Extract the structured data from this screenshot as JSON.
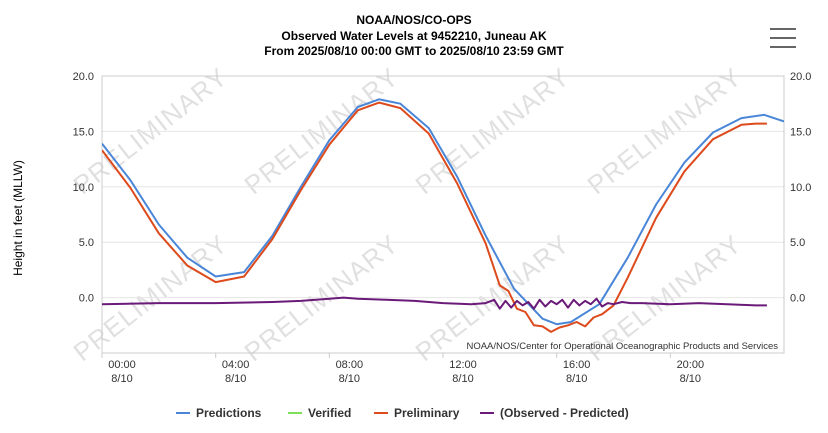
{
  "chart_data": {
    "type": "line",
    "title_lines": [
      "NOAA/NOS/CO-OPS",
      "Observed Water Levels at 9452210, Juneau AK",
      "From 2025/08/10 00:00 GMT to 2025/08/10 23:59 GMT"
    ],
    "ylabel": "Height in feet (MLLW)",
    "ylim": [
      -5,
      20
    ],
    "yticks": [
      "20.0",
      "15.0",
      "10.0",
      "5.0",
      "0.0"
    ],
    "ytick_values": [
      20,
      15,
      10,
      5,
      0
    ],
    "xlim": [
      0,
      24
    ],
    "xticks": [
      {
        "value": 0,
        "time": "00:00",
        "date": "8/10"
      },
      {
        "value": 4,
        "time": "04:00",
        "date": "8/10"
      },
      {
        "value": 8,
        "time": "08:00",
        "date": "8/10"
      },
      {
        "value": 12,
        "time": "12:00",
        "date": "8/10"
      },
      {
        "value": 16,
        "time": "16:00",
        "date": "8/10"
      },
      {
        "value": 20,
        "time": "20:00",
        "date": "8/10"
      }
    ],
    "watermark": "PRELIMINARY",
    "credits": "NOAA/NOS/Center for Operational Oceanographic Products and Services",
    "legend_position": "bottom",
    "series": [
      {
        "name": "Predictions",
        "color": "#4a86d8",
        "x": [
          0,
          1,
          2,
          3,
          4,
          5,
          6,
          7,
          8,
          9,
          9.75,
          10.5,
          11.5,
          12.5,
          13.5,
          14.5,
          15.5,
          16,
          16.5,
          17.5,
          18.5,
          19.5,
          20.5,
          21.5,
          22.5,
          23.3,
          24
        ],
        "values": [
          13.9,
          10.6,
          6.6,
          3.6,
          1.9,
          2.3,
          5.6,
          10.0,
          14.2,
          17.2,
          17.9,
          17.5,
          15.3,
          10.9,
          5.6,
          0.8,
          -1.9,
          -2.4,
          -2.2,
          -0.6,
          3.6,
          8.4,
          12.2,
          14.9,
          16.2,
          16.5,
          15.9
        ]
      },
      {
        "name": "Verified",
        "color": "#7ee05a",
        "x": [],
        "values": []
      },
      {
        "name": "Preliminary",
        "color": "#dd4a1c",
        "x": [
          0,
          1,
          2,
          3,
          4,
          5,
          6,
          7,
          8,
          9,
          9.75,
          10.5,
          11.5,
          12.5,
          13.5,
          14.0,
          14.3,
          14.6,
          14.9,
          15.2,
          15.5,
          15.8,
          16.1,
          16.4,
          16.7,
          17.0,
          17.3,
          17.6,
          18.0,
          18.5,
          19.5,
          20.5,
          21.5,
          22.5,
          23.0,
          23.4
        ],
        "values": [
          13.3,
          9.9,
          5.8,
          2.9,
          1.4,
          1.9,
          5.3,
          9.7,
          13.8,
          16.9,
          17.6,
          17.1,
          14.8,
          10.3,
          4.9,
          1.1,
          0.6,
          -1.0,
          -1.3,
          -2.5,
          -2.6,
          -3.1,
          -2.7,
          -2.5,
          -2.2,
          -2.6,
          -1.8,
          -1.5,
          -0.7,
          1.8,
          7.2,
          11.4,
          14.3,
          15.6,
          15.7,
          15.7
        ]
      },
      {
        "name": "(Observed - Predicted)",
        "color": "#6a1a78",
        "x": [
          0,
          2,
          4,
          6,
          7,
          8,
          8.5,
          9,
          10,
          11,
          12,
          13,
          13.5,
          13.8,
          14.0,
          14.2,
          14.4,
          14.6,
          14.8,
          15.0,
          15.2,
          15.4,
          15.6,
          15.8,
          16.0,
          16.2,
          16.4,
          16.6,
          16.8,
          17.0,
          17.2,
          17.4,
          17.6,
          17.8,
          18.0,
          18.3,
          18.6,
          19,
          20,
          21,
          22,
          23,
          23.4
        ],
        "values": [
          -0.6,
          -0.5,
          -0.5,
          -0.4,
          -0.3,
          -0.1,
          0.0,
          -0.1,
          -0.2,
          -0.3,
          -0.5,
          -0.6,
          -0.5,
          -0.2,
          -1.0,
          -0.3,
          -0.9,
          -0.3,
          -0.7,
          -0.4,
          -1.0,
          -0.2,
          -0.8,
          -0.3,
          -0.6,
          -0.2,
          -0.9,
          -0.2,
          -0.7,
          -0.3,
          -0.6,
          -0.1,
          -0.8,
          -0.5,
          -0.6,
          -0.4,
          -0.5,
          -0.5,
          -0.6,
          -0.5,
          -0.6,
          -0.7,
          -0.7
        ]
      }
    ]
  },
  "menu": {
    "label": "Chart context menu"
  }
}
